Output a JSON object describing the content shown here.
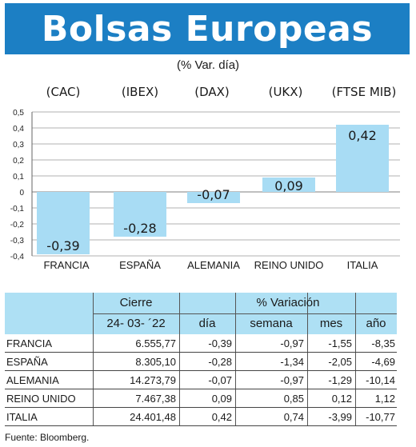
{
  "header": {
    "title": "Bolsas Europeas",
    "subtitle": "(% Var. día)"
  },
  "chart_data": {
    "type": "bar",
    "indices": [
      "(CAC)",
      "(IBEX)",
      "(DAX)",
      "(UKX)",
      "(FTSE MIB)"
    ],
    "categories": [
      "FRANCIA",
      "ESPAÑA",
      "ALEMANIA",
      "REINO UNIDO",
      "ITALIA"
    ],
    "values": [
      -0.39,
      -0.28,
      -0.07,
      0.09,
      0.42
    ],
    "value_labels": [
      "-0,39",
      "-0,28",
      "-0,07",
      "0,09",
      "0,42"
    ],
    "ylim": [
      -0.4,
      0.5
    ],
    "yticks": [
      0.5,
      0.4,
      0.3,
      0.2,
      0.1,
      0,
      -0.1,
      -0.2,
      -0.3,
      -0.4
    ],
    "ytick_labels": [
      "0,5",
      "0,4",
      "0,3",
      "0,2",
      "0,1",
      "0",
      "-0,1",
      "-0,2",
      "-0,3",
      "-0,4"
    ],
    "grid": true,
    "bar_color": "#a8dcf4",
    "grid_color": "#999999"
  },
  "table": {
    "group_header_left": "Cierre",
    "group_header_right": "% Variación",
    "columns": [
      "24- 03- ´22",
      "día",
      "semana",
      "mes",
      "año"
    ],
    "header_bg": "#aee0f4",
    "rows": [
      {
        "name": "FRANCIA",
        "cierre": "6.555,77",
        "dia": "-0,39",
        "semana": "-0,97",
        "mes": "-1,55",
        "anio": "-8,35"
      },
      {
        "name": "ESPAÑA",
        "cierre": "8.305,10",
        "dia": "-0,28",
        "semana": "-1,34",
        "mes": "-2,05",
        "anio": "-4,69"
      },
      {
        "name": "ALEMANIA",
        "cierre": "14.273,79",
        "dia": "-0,07",
        "semana": "-0,97",
        "mes": "-1,29",
        "anio": "-10,14"
      },
      {
        "name": "REINO UNIDO",
        "cierre": "7.467,38",
        "dia": "0,09",
        "semana": "0,85",
        "mes": "0,12",
        "anio": "1,12"
      },
      {
        "name": "ITALIA",
        "cierre": "24.401,48",
        "dia": "0,42",
        "semana": "0,74",
        "mes": "-3,99",
        "anio": "-10,77"
      }
    ]
  },
  "source": "Fuente: Bloomberg.",
  "colors": {
    "banner": "#1c7fc4"
  }
}
